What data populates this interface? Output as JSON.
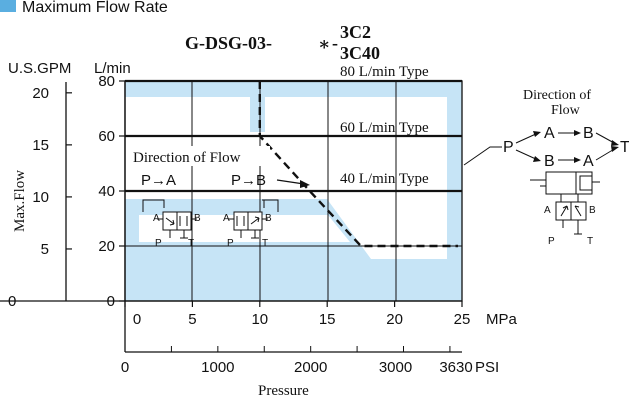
{
  "header": {
    "section_title": "Maximum Flow Rate"
  },
  "chart_data": {
    "type": "line",
    "title": "G-DSG-03-",
    "title_star": "∗",
    "title_suffix_top": "3C2",
    "title_suffix_bottom": "3C40",
    "x_primary": {
      "unit": "MPa",
      "range": [
        0,
        25
      ],
      "ticks": [
        "0",
        "5",
        "10",
        "15",
        "20",
        "25"
      ],
      "tick_values": [
        0,
        5,
        10,
        15,
        20,
        25
      ]
    },
    "x_secondary": {
      "unit": "PSI",
      "ticks": [
        "0",
        "1000",
        "2000",
        "3000",
        "3630"
      ],
      "tick_values": [
        0,
        1000,
        2000,
        3000,
        3630
      ]
    },
    "xlabel": "Pressure",
    "y_primary": {
      "unit": "L/min",
      "range": [
        0,
        80
      ],
      "ticks": [
        "0",
        "20",
        "40",
        "60",
        "80"
      ],
      "tick_values": [
        0,
        20,
        40,
        60,
        80
      ]
    },
    "y_secondary": {
      "unit": "U.S.GPM",
      "ticks": [
        "5",
        "10",
        "15",
        "20"
      ],
      "tick_values": [
        5,
        10,
        15,
        20
      ]
    },
    "ylabel": "Max.Flow",
    "grid": true,
    "type_lines": [
      {
        "label": "80 L/min Type",
        "value": 80
      },
      {
        "label": "60 L/min Type",
        "value": 60
      },
      {
        "label": "40 L/min Type",
        "value": 40
      }
    ],
    "series": [
      {
        "x": [
          10,
          10,
          13.7,
          17.5,
          24.7
        ],
        "y": [
          80,
          60,
          40,
          20,
          20
        ]
      }
    ]
  },
  "annotations": {
    "direction_title": "Direction of Flow",
    "flow_pa": "P→A",
    "flow_pb": "P→B",
    "port_a": "A",
    "port_b": "B",
    "port_p": "P",
    "port_t": "T",
    "right_title_line1": "Direction of",
    "right_title_line2": "Flow",
    "right_p": "P",
    "right_a1": "A",
    "right_b1": "B",
    "right_b2": "B",
    "right_a2": "A",
    "right_t": "T"
  }
}
